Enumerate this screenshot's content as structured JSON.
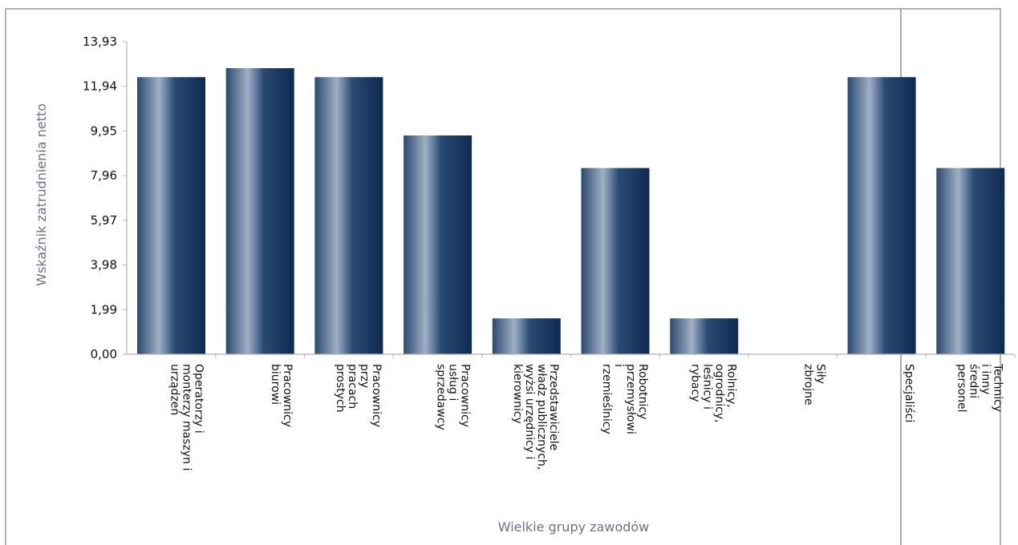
{
  "chart_data": {
    "type": "bar",
    "xlabel": "Wielkie grupy zawodów",
    "ylabel": "Wskaźnik zatrudnienia netto",
    "ylim": [
      0,
      13.93
    ],
    "yticks": [
      "0,00",
      "1,99",
      "3,98",
      "5,97",
      "7,96",
      "9,95",
      "11,94",
      "13,93"
    ],
    "ytick_values": [
      0,
      1.99,
      3.98,
      5.97,
      7.96,
      9.95,
      11.94,
      13.93
    ],
    "grid": false,
    "legend": "none",
    "bar_color": "#1f3f68",
    "categories": [
      [
        "Operatorzy i",
        "monterzy maszyn i",
        "urządzeń"
      ],
      [
        "Pracownicy",
        "biurowi"
      ],
      [
        "Pracownicy",
        "przy",
        "pracach",
        "prostych"
      ],
      [
        "Pracownicy",
        "usług i",
        "sprzedawcy"
      ],
      [
        "Przedstawiciele",
        "władz publicznych,",
        "wyżsi urzędnicy i",
        "kierownicy"
      ],
      [
        "Robotnicy",
        "przemysłowi",
        "i",
        "rzemieślnicy"
      ],
      [
        "Rolnicy,",
        "ogrodnicy,",
        "leśnicy i",
        "rybacy"
      ],
      [
        "Siły",
        "zbrojne"
      ],
      [
        "Specjaliści"
      ],
      [
        "Technicy",
        "i inny",
        "średni",
        "personel"
      ]
    ],
    "values": [
      12.35,
      12.75,
      12.35,
      9.75,
      1.6,
      8.3,
      1.6,
      0,
      12.35,
      8.3
    ]
  }
}
